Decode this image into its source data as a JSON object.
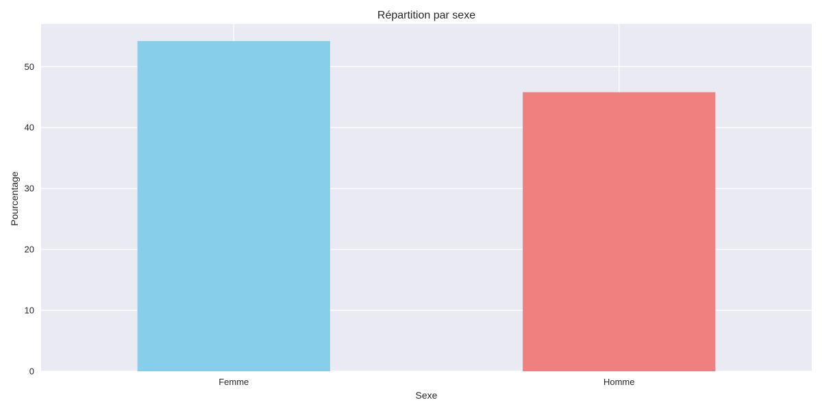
{
  "chart_data": {
    "type": "bar",
    "title": "Répartition par sexe",
    "xlabel": "Sexe",
    "ylabel": "Pourcentage",
    "categories": [
      "Femme",
      "Homme"
    ],
    "values": [
      54.2,
      45.8
    ],
    "colors": [
      "#87ceeb",
      "#f08080"
    ],
    "ylim": [
      0,
      57
    ],
    "yticks": [
      "0",
      "10",
      "20",
      "30",
      "40",
      "50"
    ],
    "grid": true,
    "legend": "none",
    "background": "#eaeaf2",
    "grid_color": "#ffffff"
  }
}
